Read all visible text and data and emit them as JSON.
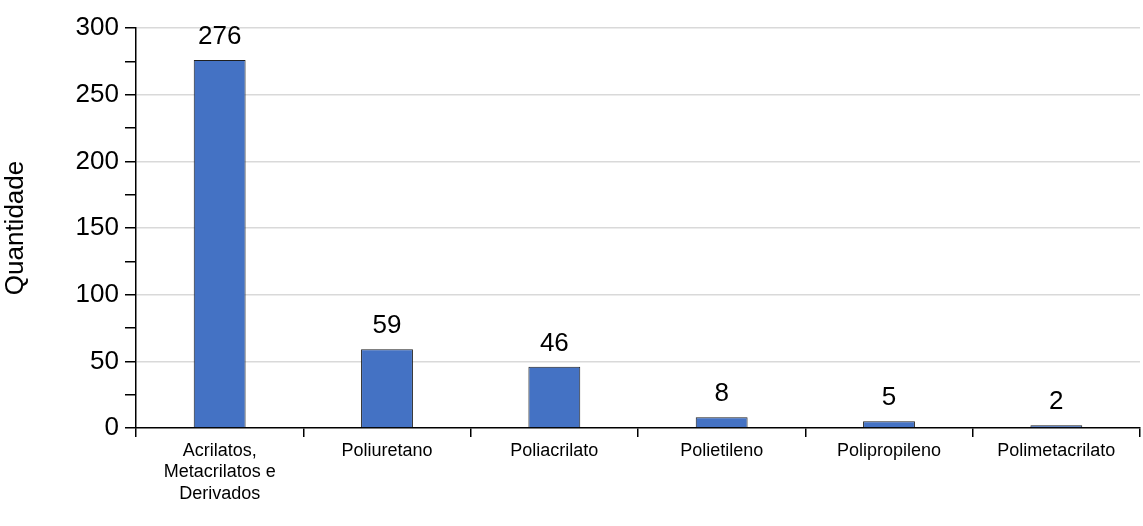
{
  "chart_data": {
    "type": "bar",
    "ylabel": "Quantidade",
    "categories": [
      "Acrilatos, Metacrilatos e Derivados",
      "Poliuretano",
      "Poliacrilato",
      "Polietileno",
      "Polipropileno",
      "Polimetacrilato"
    ],
    "values": [
      276,
      59,
      46,
      8,
      5,
      2
    ],
    "color": "#4472c4",
    "ylim": [
      0,
      300
    ],
    "yticks": [
      0,
      {
        "value": 25,
        "label": null
      },
      50,
      {
        "value": 75,
        "label": null
      },
      100,
      {
        "value": 125,
        "label": null
      },
      150,
      {
        "value": 175,
        "label": null
      },
      200,
      {
        "value": 225,
        "label": null
      },
      250,
      {
        "value": 275,
        "label": null
      },
      300
    ],
    "grid": "y",
    "data_labels": true
  }
}
